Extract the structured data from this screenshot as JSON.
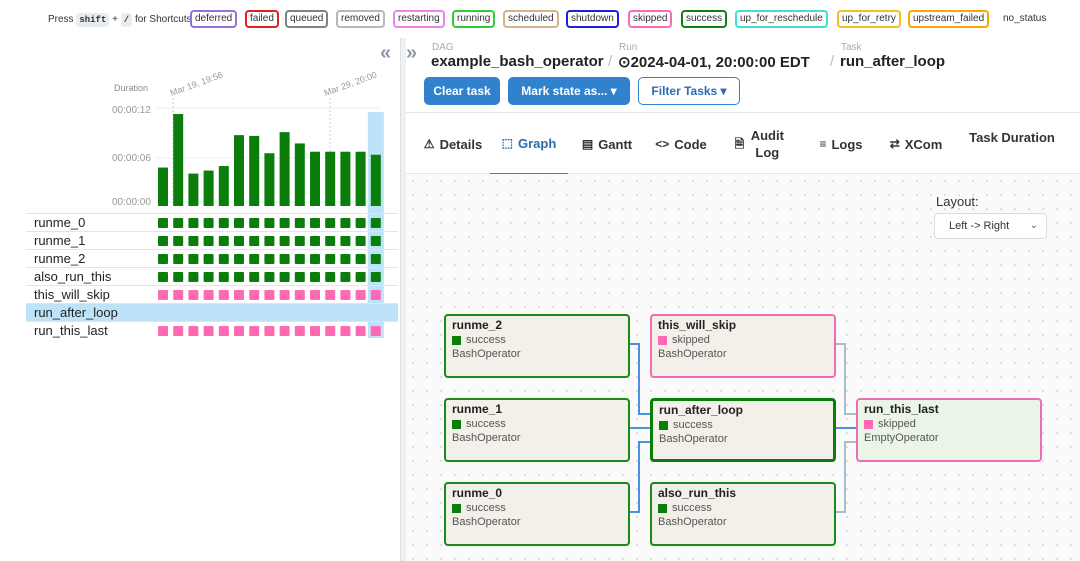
{
  "legend": {
    "press_prefix": "Press",
    "key_shift": "shift",
    "plus": "+",
    "key_slash": "/",
    "press_suffix": "for Shortcuts",
    "states": [
      {
        "label": "deferred",
        "color": "#9370db"
      },
      {
        "label": "failed",
        "color": "#e02020"
      },
      {
        "label": "queued",
        "color": "#808080"
      },
      {
        "label": "removed",
        "color": "#b8b8b8"
      },
      {
        "label": "restarting",
        "color": "#ee82ee"
      },
      {
        "label": "running",
        "color": "#32cd32"
      },
      {
        "label": "scheduled",
        "color": "#d2b48c"
      },
      {
        "label": "shutdown",
        "color": "#1e1ee0"
      },
      {
        "label": "skipped",
        "color": "#ff69b4"
      },
      {
        "label": "success",
        "color": "#108010"
      },
      {
        "label": "up_for_reschedule",
        "color": "#40e0d0"
      },
      {
        "label": "up_for_retry",
        "color": "#f0c020"
      },
      {
        "label": "upstream_failed",
        "color": "#ffa500"
      },
      {
        "label": "no_status",
        "color": "transparent"
      }
    ]
  },
  "left": {
    "collapse_icon": "«",
    "duration_title": "Duration",
    "duration_ticks": [
      "00:00:12",
      "00:00:06",
      "00:00:00"
    ],
    "date_labels": [
      "Mar 19, 19:56",
      "Mar 29, 20:00"
    ],
    "bar_values": [
      5.1,
      12.2,
      4.3,
      4.7,
      5.3,
      9.4,
      9.3,
      7.0,
      9.8,
      8.3,
      7.2,
      7.2,
      7.2,
      7.2,
      6.8
    ],
    "bar_max": 13.0,
    "tasks": [
      {
        "name": "runme_0",
        "state": "success"
      },
      {
        "name": "runme_1",
        "state": "success"
      },
      {
        "name": "runme_2",
        "state": "success"
      },
      {
        "name": "also_run_this",
        "state": "success"
      },
      {
        "name": "this_will_skip",
        "state": "skipped"
      },
      {
        "name": "run_after_loop",
        "state": "success"
      },
      {
        "name": "run_this_last",
        "state": "skipped"
      }
    ],
    "run_count": 15,
    "colors": {
      "success": "#0a7d0a",
      "skipped": "#ff69b4",
      "highlight": "#bee3f8"
    }
  },
  "header": {
    "expand_icon": "»",
    "dag_caption": "DAG",
    "dag_id": "example_bash_operator",
    "run_caption": "Run",
    "run_id": "⊙2024-04-01, 20:00:00 EDT",
    "task_caption": "Task",
    "task_id": "run_after_loop",
    "sep": "/",
    "clear_button": "Clear task",
    "mark_button": "Mark state as... ▾",
    "filter_button": "Filter Tasks ▾"
  },
  "tabs": [
    {
      "icon": "⚠",
      "label": "Details"
    },
    {
      "icon": "⬚",
      "label": "Graph"
    },
    {
      "icon": "▤",
      "label": "Gantt"
    },
    {
      "icon": "<>",
      "label": "Code"
    },
    {
      "icon": "🗎",
      "label": "Audit Log"
    },
    {
      "icon": "≡",
      "label": "Logs"
    },
    {
      "icon": "⇄",
      "label": "XCom"
    },
    {
      "icon": "",
      "label": "Task Duration"
    }
  ],
  "graph": {
    "layout_label": "Layout:",
    "layout_value": "Left -> Right",
    "nodes": {
      "runme_2": {
        "name": "runme_2",
        "state": "success",
        "operator": "BashOperator"
      },
      "runme_1": {
        "name": "runme_1",
        "state": "success",
        "operator": "BashOperator"
      },
      "runme_0": {
        "name": "runme_0",
        "state": "success",
        "operator": "BashOperator"
      },
      "this_will_skip": {
        "name": "this_will_skip",
        "state": "skipped",
        "operator": "BashOperator"
      },
      "run_after_loop": {
        "name": "run_after_loop",
        "state": "success",
        "operator": "BashOperator"
      },
      "also_run_this": {
        "name": "also_run_this",
        "state": "success",
        "operator": "BashOperator"
      },
      "run_this_last": {
        "name": "run_this_last",
        "state": "skipped",
        "operator": "EmptyOperator"
      }
    }
  }
}
